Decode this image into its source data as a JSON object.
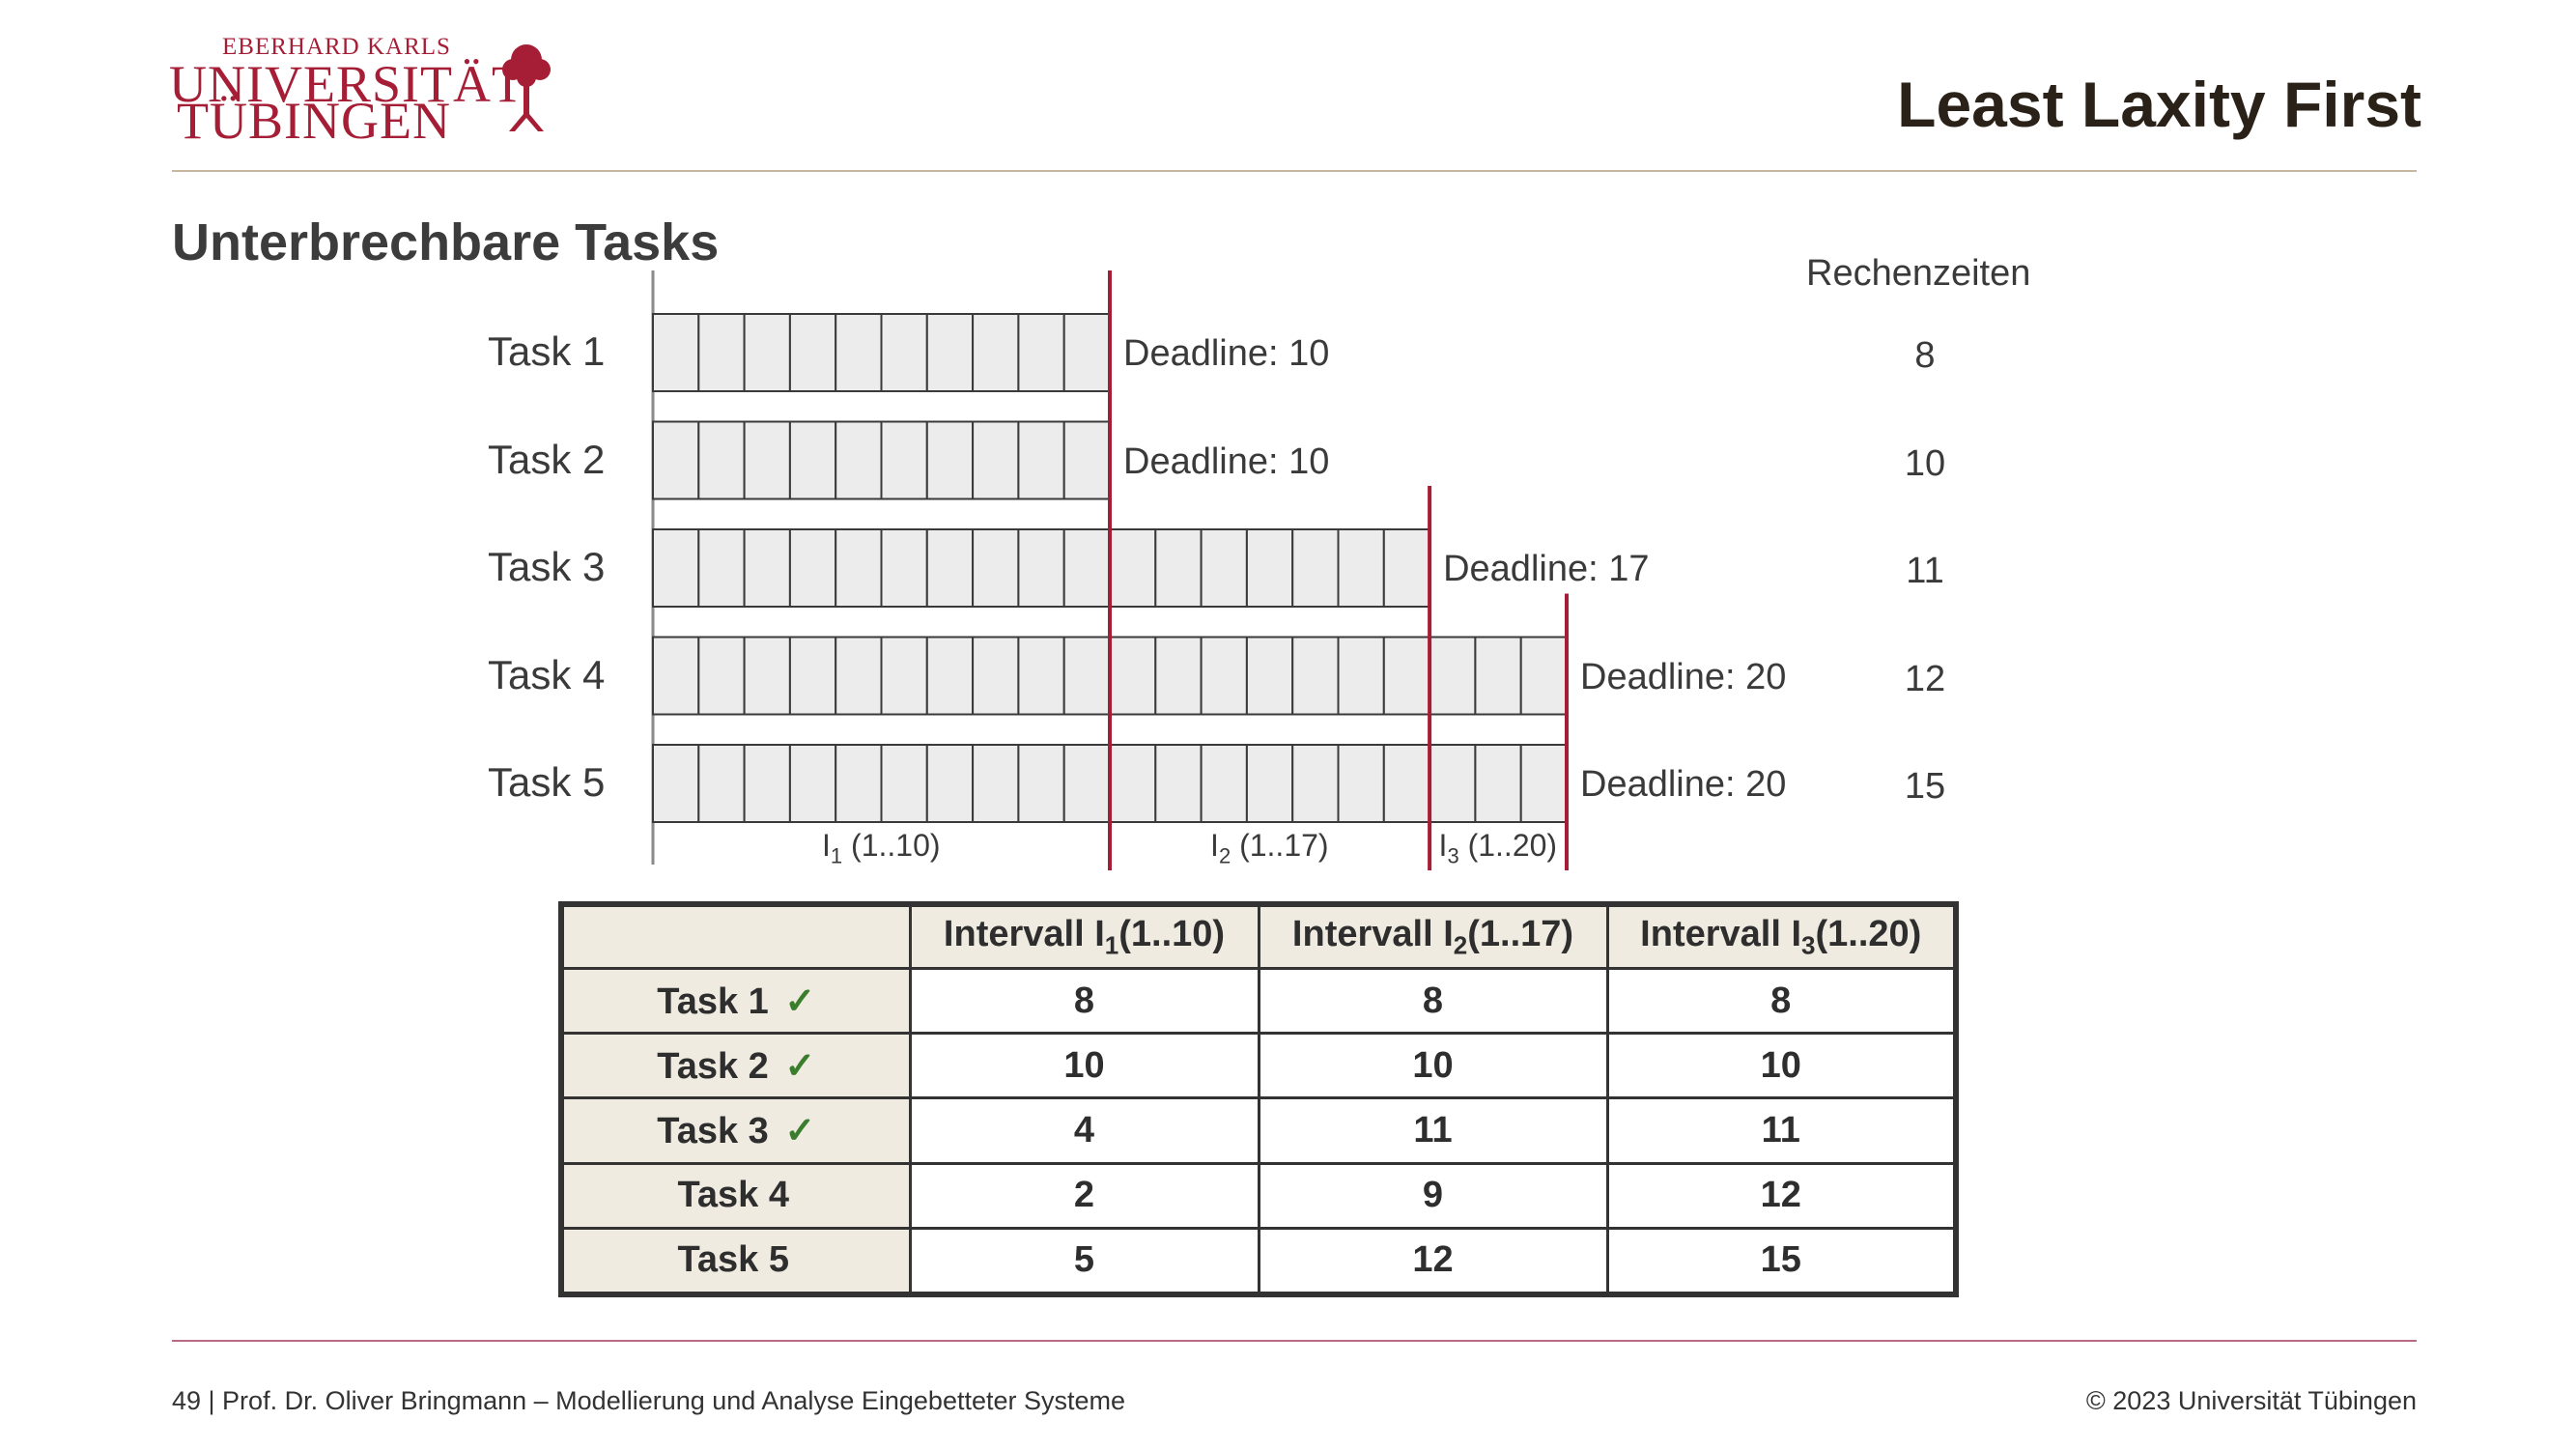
{
  "logo": {
    "line1": "EBERHARD KARLS",
    "line2": "UNIVERSITÄT",
    "line3": "TÜBINGEN",
    "emblem_icon": "palm-tree-icon",
    "color": "#a51e36"
  },
  "page_title": "Least Laxity First",
  "subtitle": "Unterbrechbare Tasks",
  "diagram": {
    "column_header": "Rechenzeiten",
    "tasks": [
      {
        "label": "Task 1",
        "deadline": 10,
        "deadline_label": "Deadline: 10",
        "computation": "8"
      },
      {
        "label": "Task 2",
        "deadline": 10,
        "deadline_label": "Deadline: 10",
        "computation": "10"
      },
      {
        "label": "Task 3",
        "deadline": 17,
        "deadline_label": "Deadline: 17",
        "computation": "11"
      },
      {
        "label": "Task 4",
        "deadline": 20,
        "deadline_label": "Deadline: 20",
        "computation": "12"
      },
      {
        "label": "Task 5",
        "deadline": 20,
        "deadline_label": "Deadline: 20",
        "computation": "15"
      }
    ],
    "intervals": [
      {
        "name": "I",
        "sub": "1",
        "range": " (1..10)",
        "end": 10
      },
      {
        "name": "I",
        "sub": "2",
        "range": " (1..17)",
        "end": 17
      },
      {
        "name": "I",
        "sub": "3",
        "range": " (1..20)",
        "end": 20
      }
    ],
    "deadline_color": "#a51e36"
  },
  "table": {
    "headers": [
      {
        "prefix": "Intervall I",
        "sub": "1",
        "suffix": "(1..10)"
      },
      {
        "prefix": "Intervall I",
        "sub": "2",
        "suffix": "(1..17)"
      },
      {
        "prefix": "Intervall I",
        "sub": "3",
        "suffix": "(1..20)"
      }
    ],
    "rows": [
      {
        "label": "Task 1",
        "check": "✓",
        "values": [
          "8",
          "8",
          "8"
        ]
      },
      {
        "label": "Task 2",
        "check": "✓",
        "values": [
          "10",
          "10",
          "10"
        ]
      },
      {
        "label": "Task 3",
        "check": "✓",
        "values": [
          "4",
          "11",
          "11"
        ]
      },
      {
        "label": "Task 4",
        "check": "",
        "values": [
          "2",
          "9",
          "12"
        ]
      },
      {
        "label": "Task 5",
        "check": "",
        "values": [
          "5",
          "12",
          "15"
        ]
      }
    ],
    "check_color": "#3a7d2c"
  },
  "footer": {
    "left": "49 | Prof. Dr. Oliver Bringmann – Modellierung und Analyse Eingebetteter Systeme",
    "right": "© 2023 Universität Tübingen"
  }
}
